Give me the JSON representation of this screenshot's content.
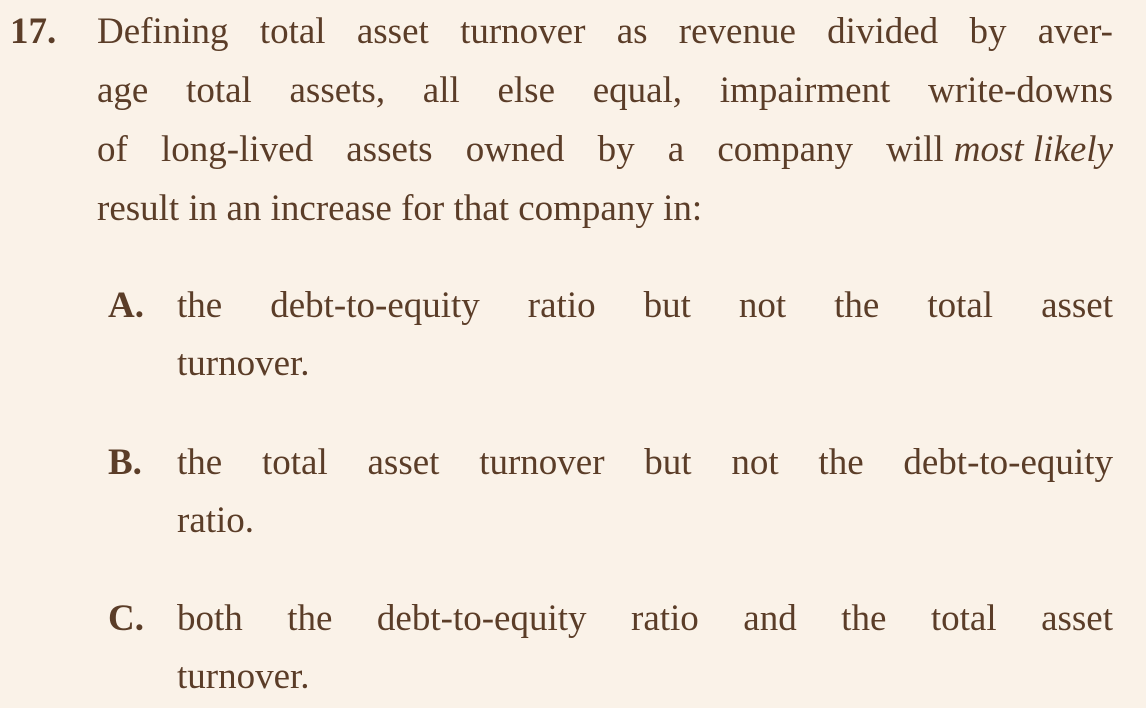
{
  "question": {
    "number": "17.",
    "lines": [
      "Defining total asset turnover as revenue divided by aver-",
      "age total assets, all else equal, impairment write-downs",
      "of long-lived assets owned by a company will",
      "result in an increase for that company in:"
    ],
    "emphasis": "most likely",
    "options": [
      {
        "letter": "A.",
        "lines": [
          "the debt-to-equity ratio but not the total asset",
          "turnover."
        ]
      },
      {
        "letter": "B.",
        "lines": [
          "the total asset turnover but not the debt-to-equity",
          "ratio."
        ]
      },
      {
        "letter": "C.",
        "lines": [
          "both the debt-to-equity ratio and the total asset",
          "turnover."
        ]
      }
    ]
  }
}
